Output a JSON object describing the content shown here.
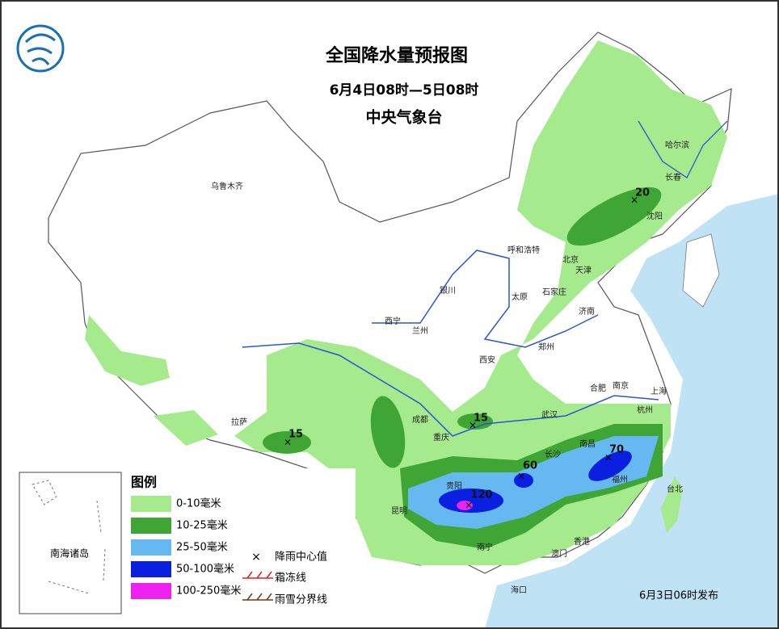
{
  "header": {
    "title": "全国降水量预报图",
    "subtitle": "6月4日08时—5日08时",
    "issuer": "中央气象台"
  },
  "cities": [
    "乌鲁木齐",
    "哈尔滨",
    "长春",
    "沈阳",
    "呼和浩特",
    "北京",
    "天津",
    "银川",
    "太原",
    "石家庄",
    "济南",
    "西宁",
    "兰州",
    "西安",
    "郑州",
    "合肥",
    "南京",
    "上海",
    "杭州",
    "武汉",
    "成都",
    "重庆",
    "拉萨",
    "长沙",
    "南昌",
    "福州",
    "台北",
    "贵阳",
    "昆明",
    "南宁",
    "香港",
    "澳门",
    "海口"
  ],
  "rain_centers": [
    20,
    15,
    15,
    60,
    70,
    120
  ],
  "legend": {
    "title": "图例",
    "items": [
      "0-10毫米",
      "10-25毫米",
      "25-50毫米",
      "50-100毫米",
      "100-250毫米"
    ],
    "symbols": [
      "降雨中心值",
      "霜冻线",
      "雨雪分界线"
    ]
  },
  "inset": {
    "label": "南海诸岛"
  },
  "footer": "6月3日06时发布"
}
